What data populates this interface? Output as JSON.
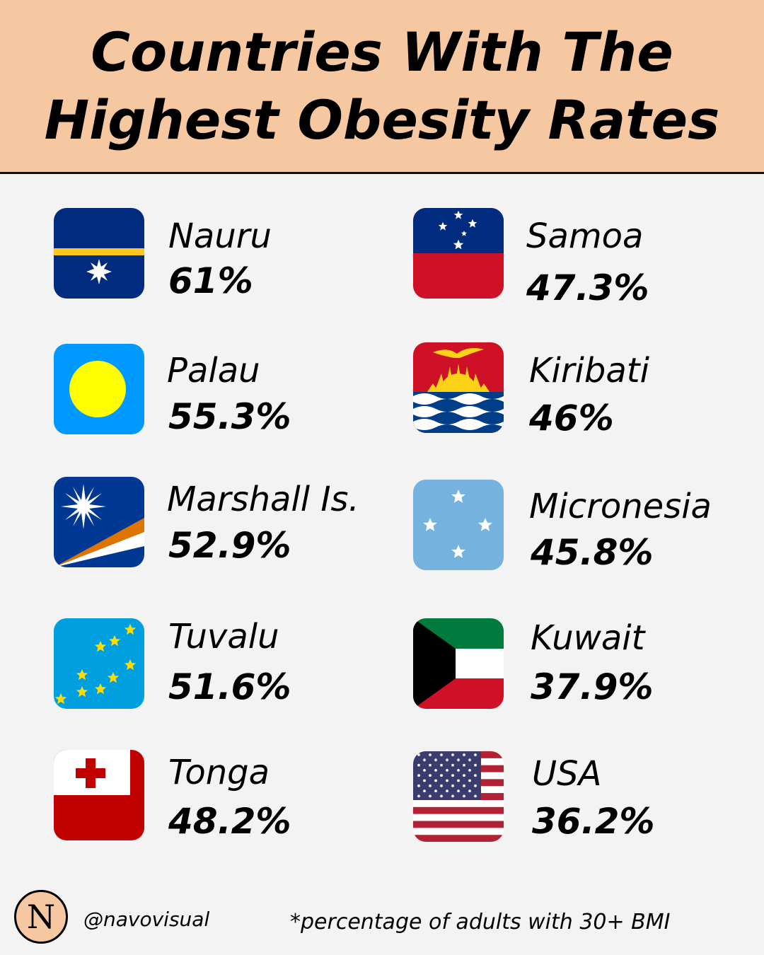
{
  "header": {
    "title_line1": "Countries With The",
    "title_line2": "Highest Obesity Rates"
  },
  "countries": [
    {
      "name": "Nauru",
      "rate": "61%",
      "flag": "nauru-flag-icon"
    },
    {
      "name": "Palau",
      "rate": "55.3%",
      "flag": "palau-flag-icon"
    },
    {
      "name": "Marshall Is.",
      "rate": "52.9%",
      "flag": "marshall-islands-flag-icon"
    },
    {
      "name": "Tuvalu",
      "rate": "51.6%",
      "flag": "tuvalu-flag-icon"
    },
    {
      "name": "Tonga",
      "rate": "48.2%",
      "flag": "tonga-flag-icon"
    },
    {
      "name": "Samoa",
      "rate": "47.3%",
      "flag": "samoa-flag-icon"
    },
    {
      "name": "Kiribati",
      "rate": "46%",
      "flag": "kiribati-flag-icon"
    },
    {
      "name": "Micronesia",
      "rate": "45.8%",
      "flag": "micronesia-flag-icon"
    },
    {
      "name": "Kuwait",
      "rate": "37.9%",
      "flag": "kuwait-flag-icon"
    },
    {
      "name": "USA",
      "rate": "36.2%",
      "flag": "usa-flag-icon"
    }
  ],
  "footer": {
    "logo_letter": "N",
    "handle": "@navovisual",
    "footnote": "*percentage of adults with 30+ BMI"
  },
  "colors": {
    "header_bg": "#f6c8a2",
    "page_bg": "#f3f3f3"
  }
}
